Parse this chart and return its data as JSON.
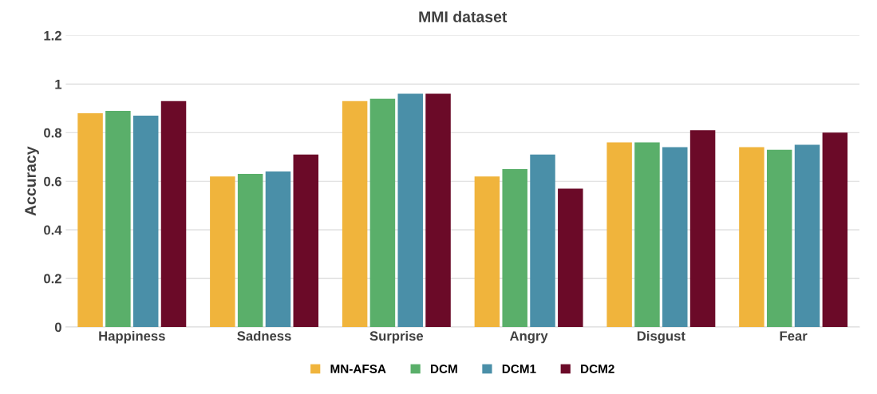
{
  "chart_data": {
    "type": "bar",
    "title": "MMI dataset",
    "ylabel": "Accuracy",
    "categories": [
      "Happiness",
      "Sadness",
      "Surprise",
      "Angry",
      "Disgust",
      "Fear"
    ],
    "series": [
      {
        "name": "MN-AFSA",
        "color": "#f0b43c",
        "values": [
          0.88,
          0.62,
          0.93,
          0.62,
          0.76,
          0.74
        ]
      },
      {
        "name": "DCM",
        "color": "#5aaf6a",
        "values": [
          0.89,
          0.63,
          0.94,
          0.65,
          0.76,
          0.73
        ]
      },
      {
        "name": "DCM1",
        "color": "#4a8fa8",
        "values": [
          0.87,
          0.64,
          0.96,
          0.71,
          0.74,
          0.75
        ]
      },
      {
        "name": "DCM2",
        "color": "#6b0a28",
        "values": [
          0.93,
          0.71,
          0.96,
          0.57,
          0.81,
          0.8
        ]
      }
    ],
    "ylim": [
      0,
      1.2
    ],
    "yticks": [
      0,
      0.2,
      0.4,
      0.6,
      0.8,
      1,
      1.2
    ],
    "grid": "y",
    "legend": "bottom"
  }
}
